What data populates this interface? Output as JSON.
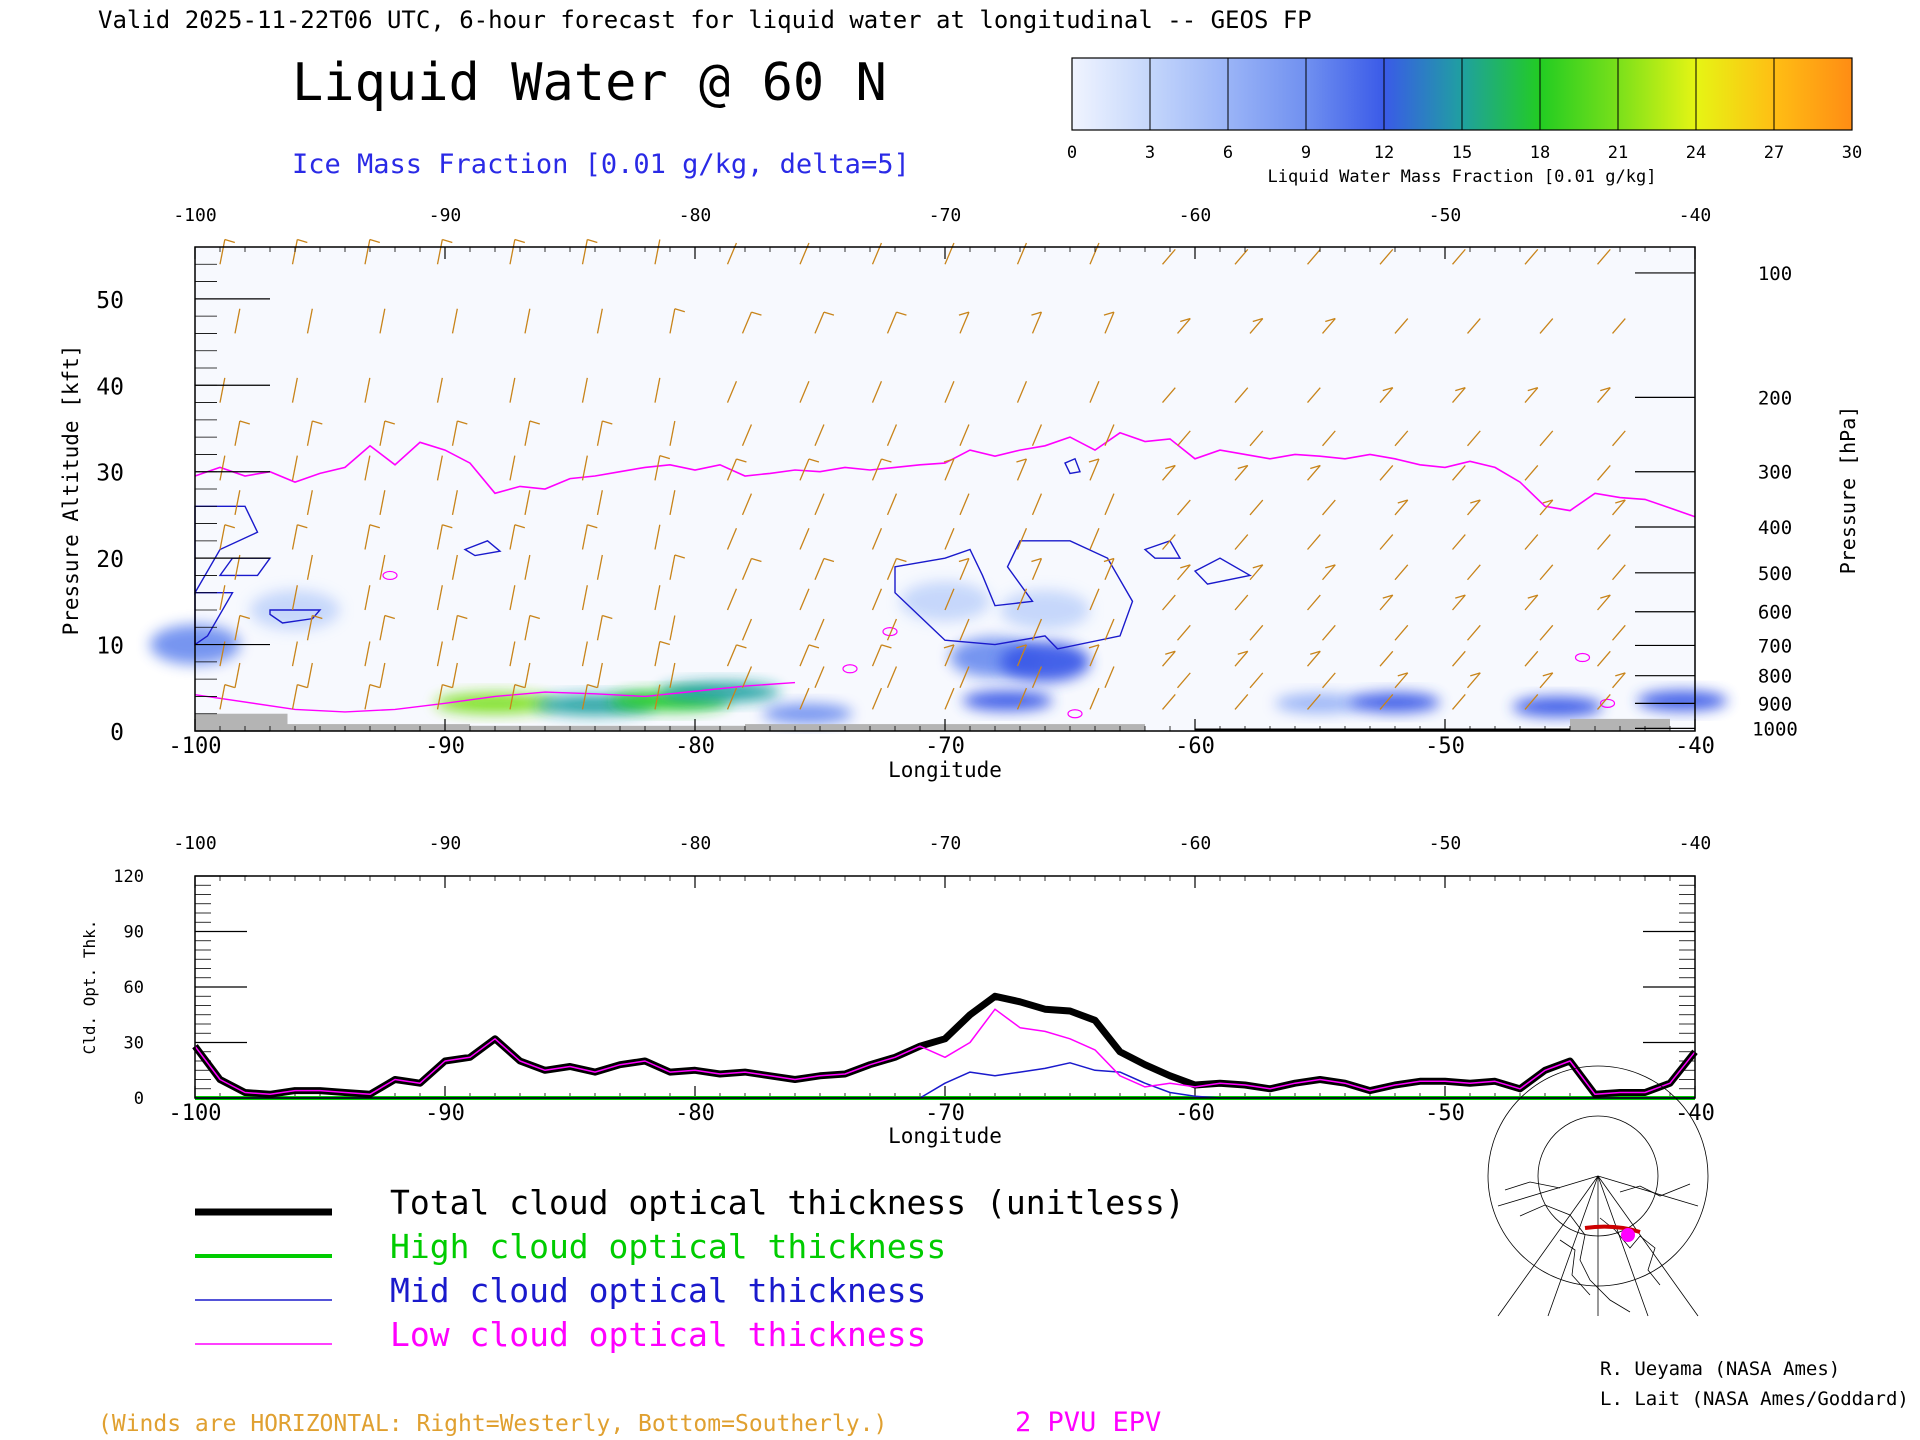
{
  "header": {
    "valid_line": "Valid 2025-11-22T06 UTC, 6-hour forecast for liquid water at longitudinal -- GEOS FP",
    "main_title": "Liquid Water @ 60 N",
    "ice_label": "Ice Mass Fraction [0.01 g/kg, delta=5]"
  },
  "colors": {
    "ice_contour": "#1a1acc",
    "epv": "#ff00ff",
    "wind": "#c8841a",
    "total": "#000000",
    "high": "#00cc00",
    "mid": "#1a1acc",
    "low": "#ff00ff",
    "terrain": "#b4b4b4"
  },
  "colorbar": {
    "label": "Liquid Water Mass Fraction [0.01 g/kg]",
    "ticks": [
      "0",
      "3",
      "6",
      "9",
      "12",
      "15",
      "18",
      "21",
      "24",
      "27",
      "30"
    ],
    "colors": [
      "#f0f4ff",
      "#c4d6fb",
      "#9ab4f7",
      "#7090f0",
      "#3a5ae8",
      "#1fa0a0",
      "#22cc22",
      "#7ae01a",
      "#e6f514",
      "#ffbe14",
      "#ff8c14",
      "#ff3c14"
    ]
  },
  "footer": {
    "winds_note": "(Winds are HORIZONTAL: Right=Westerly, Bottom=Southerly.)",
    "epv_label": "2 PVU EPV",
    "credit1": "R. Ueyama (NASA Ames)",
    "credit2": "L. Lait (NASA Ames/Goddard)"
  },
  "legend": [
    {
      "label": "Total cloud optical thickness (unitless)",
      "color": "#000000",
      "width": 7
    },
    {
      "label": "High cloud optical thickness",
      "color": "#00cc00",
      "width": 4
    },
    {
      "label": "Mid cloud optical thickness",
      "color": "#1a1acc",
      "width": 1.5
    },
    {
      "label": "Low cloud optical thickness",
      "color": "#ff00ff",
      "width": 1.5
    }
  ],
  "chart_data": [
    {
      "type": "heatmap",
      "title": "Liquid Water @ 60 N",
      "xlabel": "Longitude",
      "ylabel": "Pressure Altitude [kft]",
      "y2label": "Pressure [hPa]",
      "xlim": [
        -100,
        -40
      ],
      "ylim": [
        0,
        56
      ],
      "x_ticks": [
        "-100",
        "-90",
        "-80",
        "-70",
        "-60",
        "-50",
        "-40"
      ],
      "y_ticks": [
        "0",
        "10",
        "20",
        "30",
        "40",
        "50"
      ],
      "pressure_ticks": [
        "100",
        "200",
        "300",
        "400",
        "500",
        "600",
        "700",
        "800",
        "900",
        "1000"
      ],
      "pressure_tick_kft": [
        53,
        38.6,
        30,
        23.6,
        18.3,
        13.8,
        9.9,
        6.4,
        3.2,
        0.3
      ],
      "liquid_water_patches": [
        {
          "lon": -88,
          "kft": 3.2,
          "value": 20
        },
        {
          "lon": -84,
          "kft": 3.0,
          "value": 14
        },
        {
          "lon": -81,
          "kft": 3.5,
          "value": 18
        },
        {
          "lon": -79,
          "kft": 4.5,
          "value": 15
        },
        {
          "lon": -75.5,
          "kft": 2.0,
          "value": 8
        },
        {
          "lon": -68,
          "kft": 8.5,
          "value": 10
        },
        {
          "lon": -66,
          "kft": 8.0,
          "value": 11
        },
        {
          "lon": -67.5,
          "kft": 3.5,
          "value": 11
        },
        {
          "lon": -66,
          "kft": 14,
          "value": 4
        },
        {
          "lon": -70,
          "kft": 15,
          "value": 3
        },
        {
          "lon": -55,
          "kft": 3.2,
          "value": 7
        },
        {
          "lon": -52,
          "kft": 3.3,
          "value": 12
        },
        {
          "lon": -45.5,
          "kft": 2.8,
          "value": 12
        },
        {
          "lon": -40.5,
          "kft": 3.5,
          "value": 11
        },
        {
          "lon": -100,
          "kft": 10,
          "value": 9
        },
        {
          "lon": -96,
          "kft": 14,
          "value": 3
        }
      ],
      "epv_2pvu_tropopause": {
        "lon": [
          -100,
          -99,
          -98,
          -97,
          -96,
          -95,
          -94,
          -93,
          -92,
          -91,
          -90,
          -89,
          -88,
          -87,
          -86,
          -85,
          -84,
          -83,
          -82,
          -81,
          -80,
          -79,
          -78,
          -77,
          -76,
          -75,
          -74,
          -73,
          -72,
          -71,
          -70,
          -69,
          -68,
          -67,
          -66,
          -65,
          -64,
          -63,
          -62,
          -61,
          -60,
          -59,
          -58,
          -57,
          -56,
          -55,
          -54,
          -53,
          -52,
          -51,
          -50,
          -49,
          -48,
          -47,
          -46,
          -45,
          -44,
          -43,
          -42,
          -41,
          -40
        ],
        "kft": [
          29.5,
          30.5,
          29.5,
          30,
          28.8,
          29.8,
          30.5,
          33,
          30.8,
          33.4,
          32.5,
          31,
          27.5,
          28.3,
          28,
          29.2,
          29.5,
          30,
          30.5,
          30.8,
          30.2,
          30.8,
          29.5,
          29.8,
          30.2,
          30,
          30.5,
          30.2,
          30.5,
          30.8,
          31,
          32.5,
          31.8,
          32.5,
          33,
          34,
          32.5,
          34.5,
          33.5,
          33.8,
          31.5,
          32.5,
          32,
          31.5,
          32,
          31.8,
          31.5,
          32,
          31.5,
          30.8,
          30.5,
          31.2,
          30.5,
          28.8,
          26,
          25.5,
          27.5,
          27,
          26.8,
          25.8,
          24.8
        ]
      },
      "ice_contour_regions": [
        {
          "lon": -99.3,
          "kft": 20
        },
        {
          "lon": -96,
          "kft": 14
        },
        {
          "lon": -88.5,
          "kft": 20.5
        },
        {
          "lon": -67,
          "kft": 15
        },
        {
          "lon": -59,
          "kft": 18.5
        }
      ]
    },
    {
      "type": "line",
      "xlabel": "Longitude",
      "ylabel": "Cld. Opt. Thk.",
      "xlim": [
        -100,
        -40
      ],
      "ylim": [
        0,
        120
      ],
      "x_ticks": [
        "-100",
        "-90",
        "-80",
        "-70",
        "-60",
        "-50",
        "-40"
      ],
      "y_ticks": [
        "0",
        "30",
        "60",
        "90",
        "120"
      ],
      "x": [
        -100,
        -99,
        -98,
        -97,
        -96,
        -95,
        -94,
        -93,
        -92,
        -91,
        -90,
        -89,
        -88,
        -87,
        -86,
        -85,
        -84,
        -83,
        -82,
        -81,
        -80,
        -79,
        -78,
        -77,
        -76,
        -75,
        -74,
        -73,
        -72,
        -71,
        -70,
        -69,
        -68,
        -67,
        -66,
        -65,
        -64,
        -63,
        -62,
        -61,
        -60,
        -59,
        -58,
        -57,
        -56,
        -55,
        -54,
        -53,
        -52,
        -51,
        -50,
        -49,
        -48,
        -47,
        -46,
        -45,
        -44,
        -43,
        -42,
        -41,
        -40
      ],
      "series": [
        {
          "name": "Total cloud optical thickness (unitless)",
          "values": [
            28,
            10,
            3,
            2,
            4,
            4,
            3,
            2,
            10,
            8,
            20,
            22,
            32,
            20,
            15,
            17,
            14,
            18,
            20,
            14,
            15,
            13,
            14,
            12,
            10,
            12,
            13,
            18,
            22,
            28,
            32,
            45,
            55,
            52,
            48,
            47,
            42,
            25,
            18,
            12,
            7,
            8,
            7,
            5,
            8,
            10,
            8,
            4,
            7,
            9,
            9,
            8,
            9,
            5,
            15,
            20,
            2,
            3,
            3,
            8,
            25
          ]
        },
        {
          "name": "High cloud optical thickness",
          "values": [
            0,
            0,
            0,
            0,
            0,
            0,
            0,
            0,
            0,
            0,
            0,
            0,
            0,
            0,
            0,
            0,
            0,
            0,
            0,
            0,
            0,
            0,
            0,
            0,
            0,
            0,
            0,
            0,
            0,
            0,
            0,
            0,
            0,
            0,
            0,
            0,
            0,
            0,
            0,
            0,
            0,
            0,
            0,
            0,
            0,
            0,
            0,
            0,
            0,
            0,
            0,
            0,
            0,
            0,
            0,
            0,
            0,
            0,
            0,
            0,
            0
          ]
        },
        {
          "name": "Mid cloud optical thickness",
          "values": [
            0,
            0,
            0,
            0,
            0,
            0,
            0,
            0,
            0,
            0,
            0,
            0,
            0,
            0,
            0,
            0,
            0,
            0,
            0,
            0,
            0,
            0,
            0,
            0,
            0,
            0,
            0,
            0,
            0,
            0,
            8,
            14,
            12,
            14,
            16,
            19,
            15,
            14,
            8,
            3,
            1,
            0,
            0,
            0,
            0,
            0,
            0,
            0,
            0,
            0,
            0,
            0,
            0,
            0,
            0,
            0,
            0,
            0,
            0,
            0,
            0
          ]
        },
        {
          "name": "Low cloud optical thickness",
          "values": [
            28,
            10,
            3,
            2,
            4,
            4,
            3,
            2,
            10,
            8,
            20,
            22,
            32,
            20,
            15,
            17,
            14,
            18,
            20,
            14,
            15,
            13,
            14,
            12,
            10,
            12,
            13,
            18,
            22,
            28,
            22,
            30,
            48,
            38,
            36,
            32,
            26,
            12,
            6,
            8,
            6,
            8,
            7,
            5,
            8,
            10,
            8,
            4,
            7,
            9,
            9,
            8,
            9,
            5,
            15,
            20,
            2,
            3,
            3,
            8,
            25
          ]
        }
      ]
    }
  ]
}
